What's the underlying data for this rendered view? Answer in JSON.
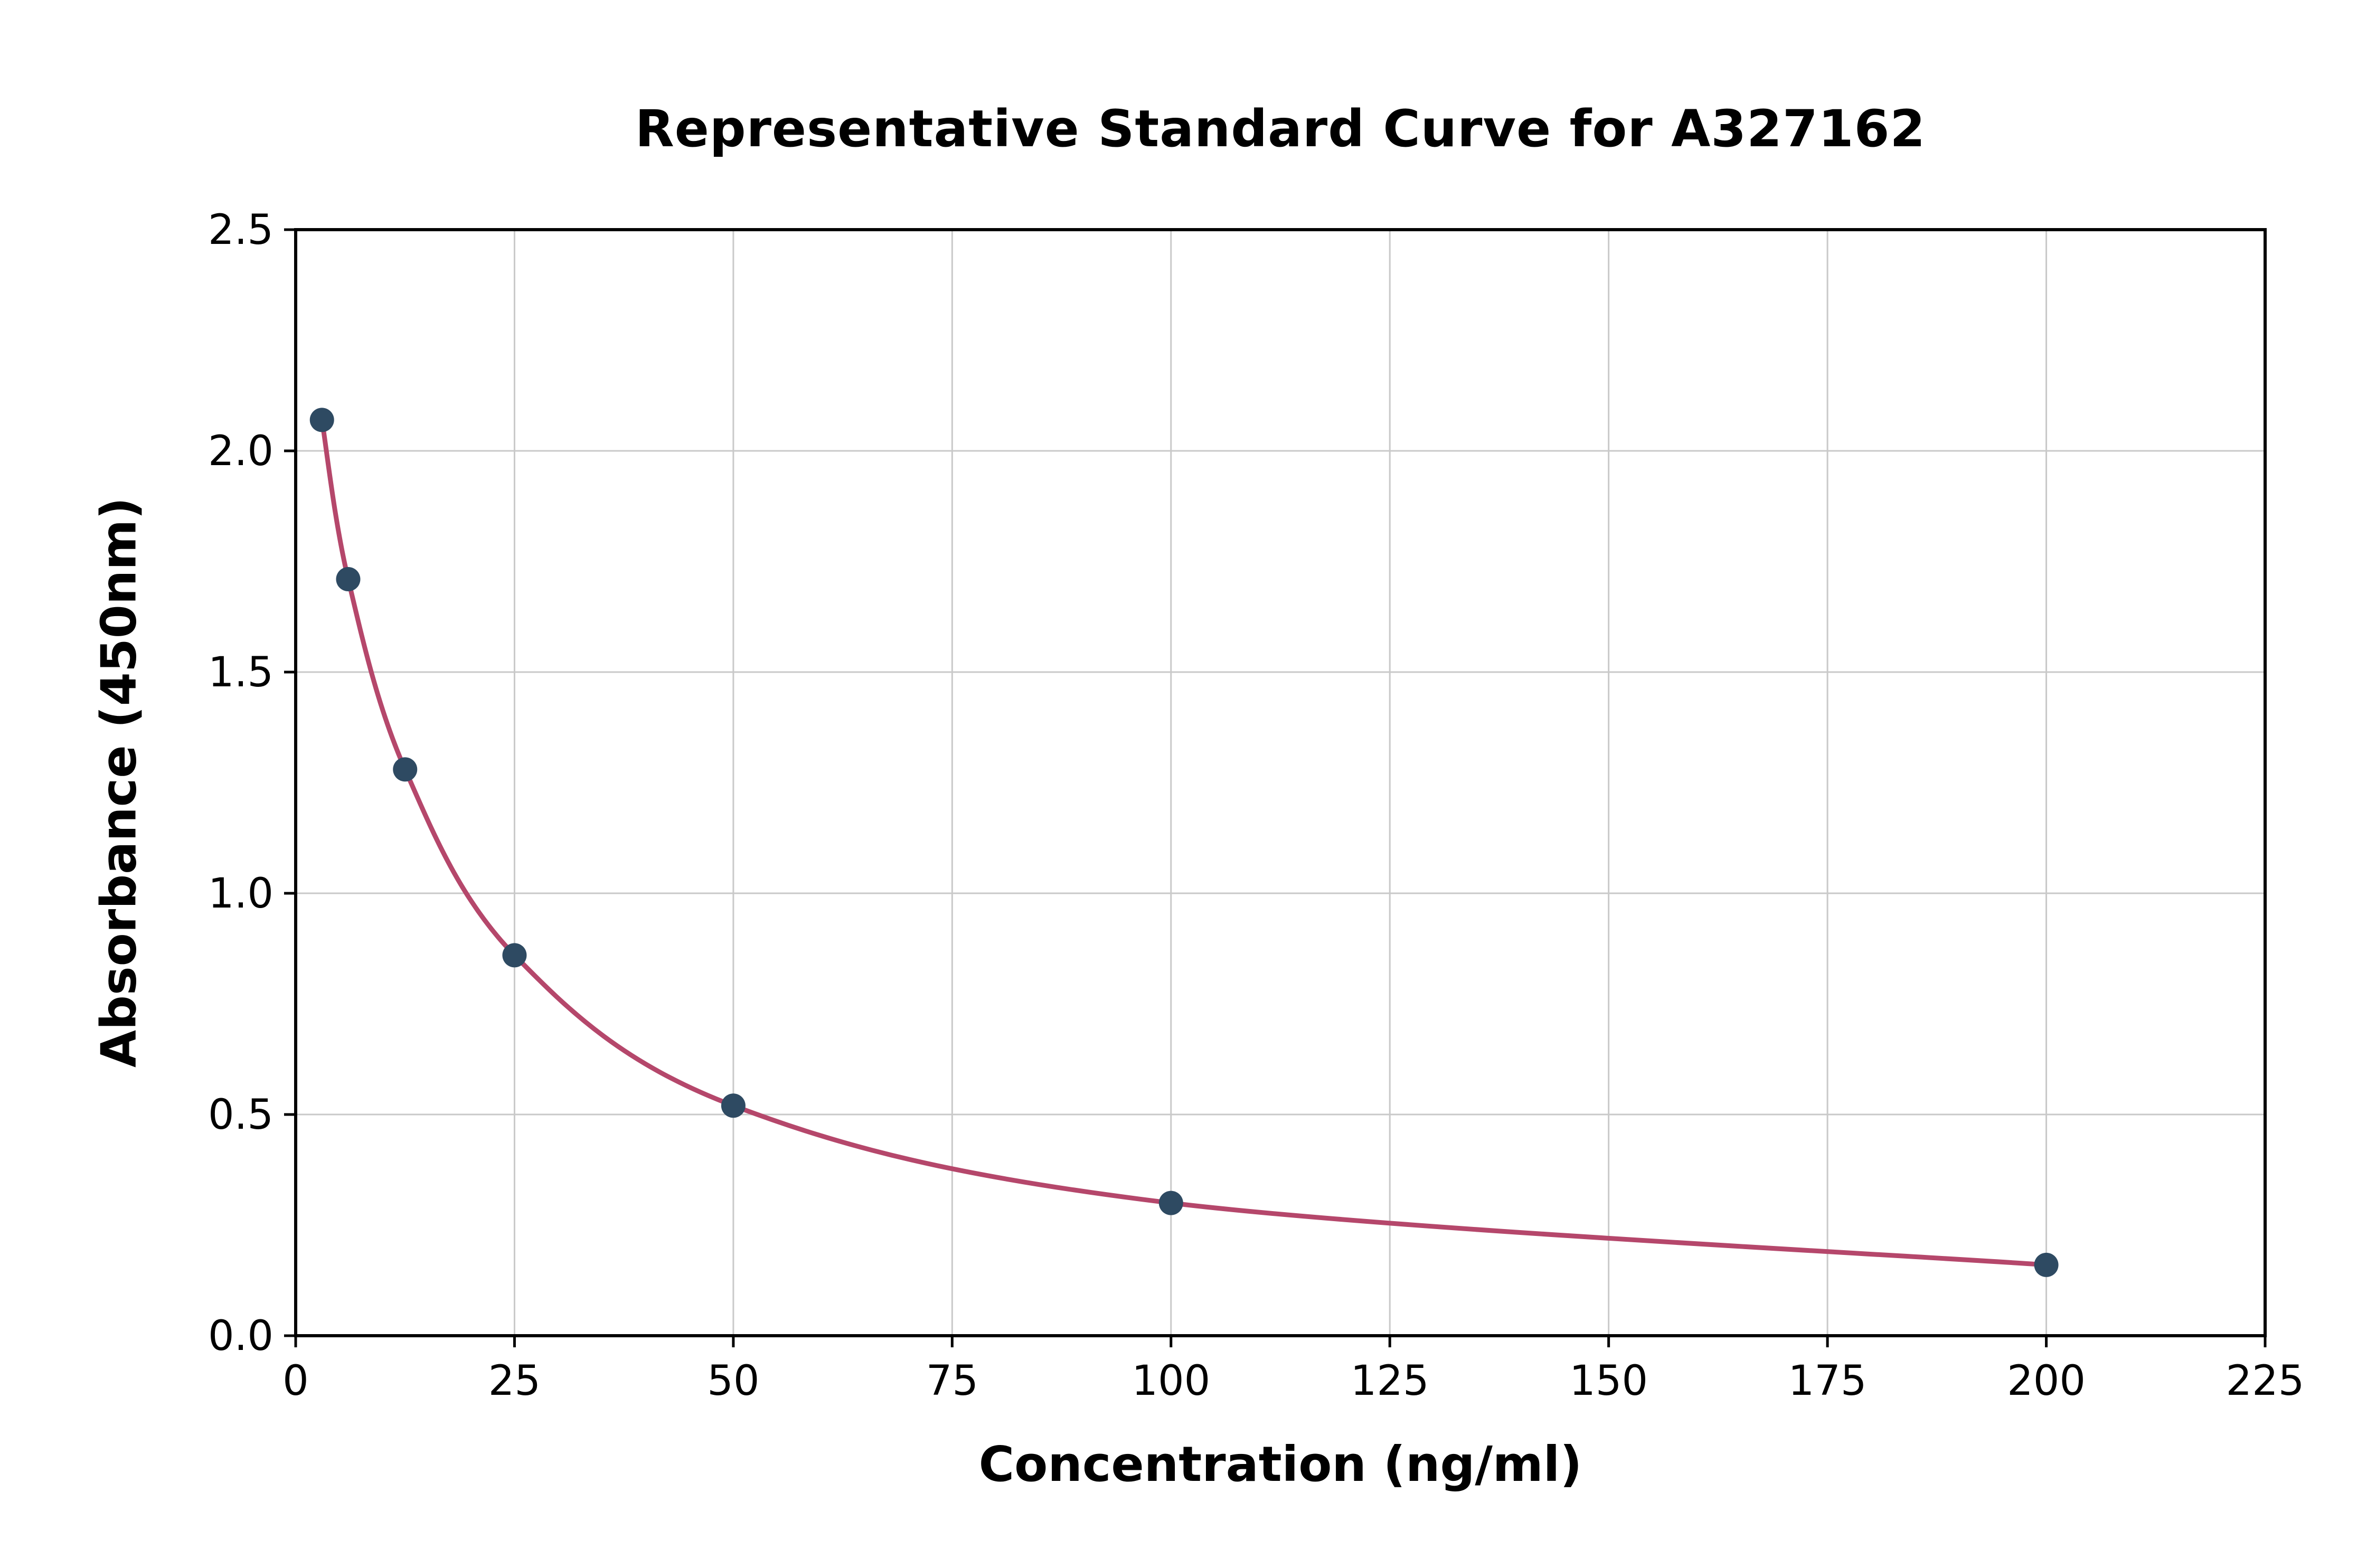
{
  "chart_data": {
    "type": "line",
    "title": "Representative Standard Curve for A327162",
    "xlabel": "Concentration (ng/ml)",
    "ylabel": "Absorbance (450nm)",
    "x": [
      3,
      6,
      12.5,
      25,
      50,
      100,
      200
    ],
    "y": [
      2.07,
      1.71,
      1.28,
      0.86,
      0.52,
      0.3,
      0.16
    ],
    "xlim": [
      0,
      225
    ],
    "ylim": [
      0,
      2.5
    ],
    "xticks": [
      0,
      25,
      50,
      75,
      100,
      125,
      150,
      175,
      200,
      225
    ],
    "yticks": [
      0,
      0.5,
      1.0,
      1.5,
      2.0,
      2.5
    ],
    "xtick_labels": [
      "0",
      "25",
      "50",
      "75",
      "100",
      "125",
      "150",
      "175",
      "200",
      "225"
    ],
    "ytick_labels": [
      "0.0",
      "0.5",
      "1.0",
      "1.5",
      "2.0",
      "2.5"
    ],
    "grid": true,
    "legend": "none",
    "colors": {
      "curve": "#b5476b",
      "marker": "#2e4a62",
      "grid": "#c9c9c9",
      "axis": "#000000",
      "background": "#ffffff"
    }
  }
}
